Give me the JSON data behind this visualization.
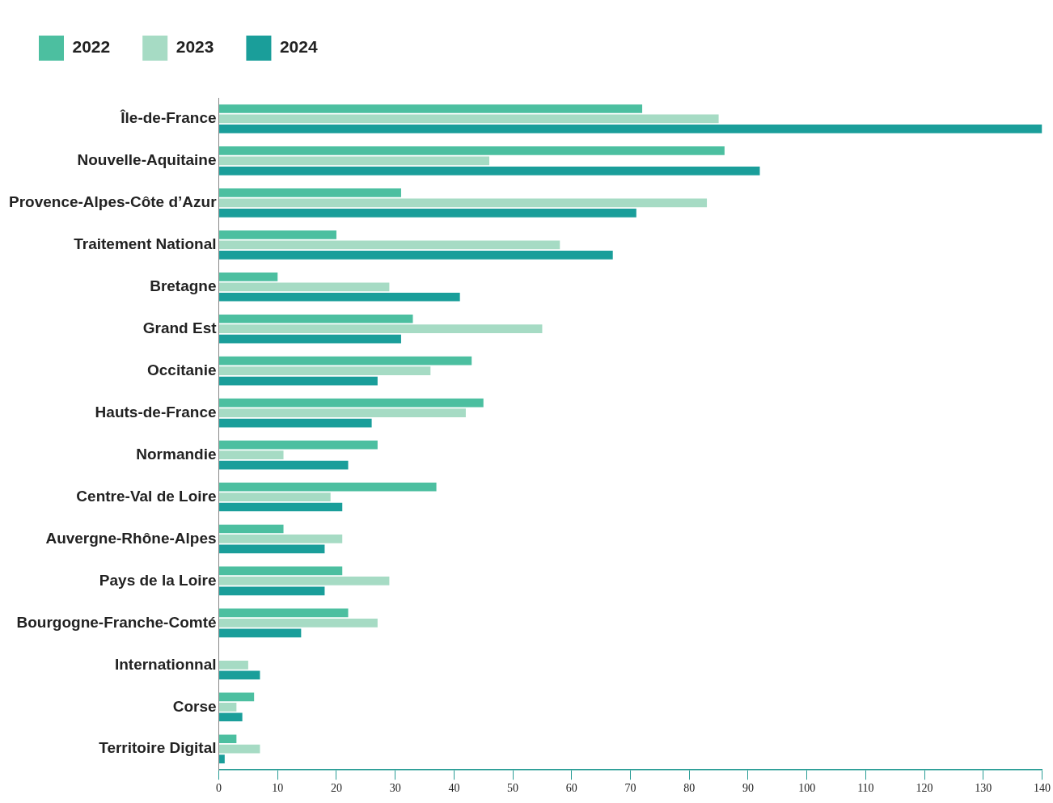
{
  "chart_data": {
    "type": "bar",
    "orientation": "horizontal",
    "legend": "top",
    "grid": false,
    "categories": [
      "Île-de-France",
      "Nouvelle-Aquitaine",
      "Provence-Alpes-Côte d’Azur",
      "Traitement National",
      "Bretagne",
      "Grand Est",
      "Occitanie",
      "Hauts-de-France",
      "Normandie",
      "Centre-Val de Loire",
      "Auvergne-Rhône-Alpes",
      "Pays de la Loire",
      "Bourgogne-Franche-Comté",
      "Internationnal",
      "Corse",
      "Territoire Digital"
    ],
    "series": [
      {
        "name": "2022",
        "color": "#4cbfa0",
        "values": [
          72,
          86,
          31,
          20,
          10,
          33,
          43,
          45,
          27,
          37,
          11,
          21,
          22,
          0,
          6,
          3
        ]
      },
      {
        "name": "2023",
        "color": "#a6dbc4",
        "values": [
          85,
          46,
          83,
          58,
          29,
          55,
          36,
          42,
          11,
          19,
          21,
          29,
          27,
          5,
          3,
          7
        ]
      },
      {
        "name": "2024",
        "color": "#1a9e9a",
        "values": [
          140,
          92,
          71,
          67,
          41,
          31,
          27,
          26,
          22,
          21,
          18,
          18,
          14,
          7,
          4,
          1
        ]
      }
    ],
    "xlim": [
      0,
      140
    ],
    "xticks": [
      0,
      10,
      20,
      30,
      40,
      50,
      60,
      70,
      80,
      90,
      100,
      110,
      120,
      130,
      140
    ]
  }
}
